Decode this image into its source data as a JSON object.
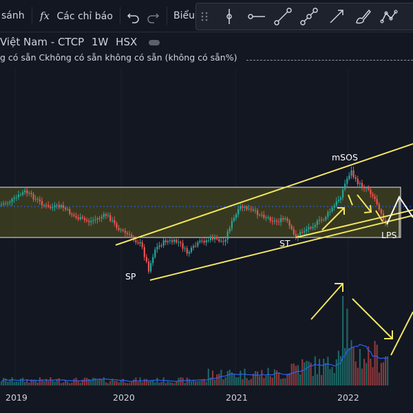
{
  "toolbar": {
    "compare_label": "sánh",
    "indicators_label": "Các chỉ báo",
    "chart_type_label": "Biểu",
    "fx_glyph": "fx",
    "undo_icon": "undo-icon",
    "redo_icon": "redo-icon"
  },
  "drawing_tools": [
    "grip-icon",
    "cursor-line-icon",
    "horizontal-ray-icon",
    "trend-line-icon",
    "parallel-channel-icon",
    "arrow-line-icon",
    "brush-icon",
    "zigzag-icon"
  ],
  "legend": {
    "symbol": "Việt Nam - CTCP",
    "interval": "1W",
    "exchange": "HSX",
    "ohlc_text": "g có sẵn  Ckhông có sẵn  không có sẵn (không có sẵn%)"
  },
  "annotations": {
    "sp": "SP",
    "st": "ST",
    "msos": "mSOS",
    "lps": "LPS"
  },
  "xaxis": {
    "labels": [
      "2019",
      "2020",
      "2021",
      "2022"
    ]
  },
  "colors": {
    "up": "#26a69a",
    "down": "#ef5350",
    "channel": "#f5e663",
    "zone_fill": "#3d3f1f",
    "volume_ma": "#2962ff",
    "background": "#131722"
  }
}
